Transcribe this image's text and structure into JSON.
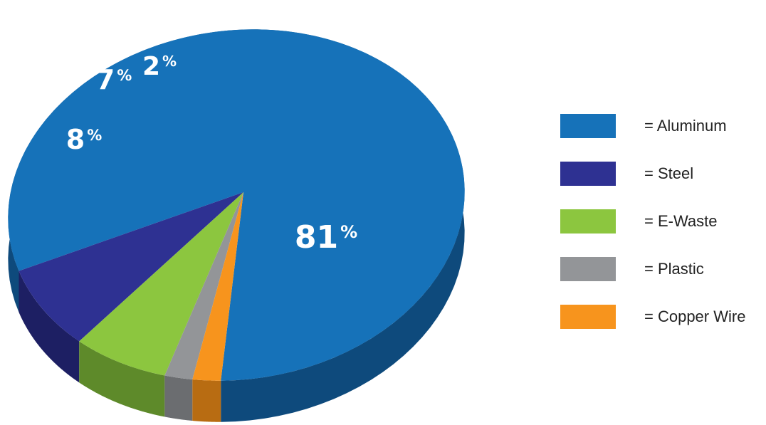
{
  "chart_data": {
    "type": "pie",
    "title": "",
    "slices": [
      {
        "label": "Aluminum",
        "value": 81,
        "color": "#1672b9",
        "side_color": "#0e4a7c"
      },
      {
        "label": "Steel",
        "value": 8,
        "color": "#2e3192",
        "side_color": "#1d1f63"
      },
      {
        "label": "E-Waste",
        "value": 7,
        "color": "#8cc63f",
        "side_color": "#5e8a2a"
      },
      {
        "label": "Plastic",
        "value": 2,
        "color": "#939598",
        "side_color": "#6b6d70"
      },
      {
        "label": "Copper Wire",
        "value": 2,
        "color": "#f7941d",
        "side_color": "#b86c12"
      }
    ],
    "value_suffix": "%",
    "legend_placement": "right"
  },
  "legend": [
    {
      "label": "= Aluminum",
      "color": "#1672b9"
    },
    {
      "label": "= Steel",
      "color": "#2e3192"
    },
    {
      "label": "= E-Waste",
      "color": "#8cc63f"
    },
    {
      "label": "= Plastic",
      "color": "#939598"
    },
    {
      "label": "= Copper Wire",
      "color": "#f7941d"
    }
  ]
}
